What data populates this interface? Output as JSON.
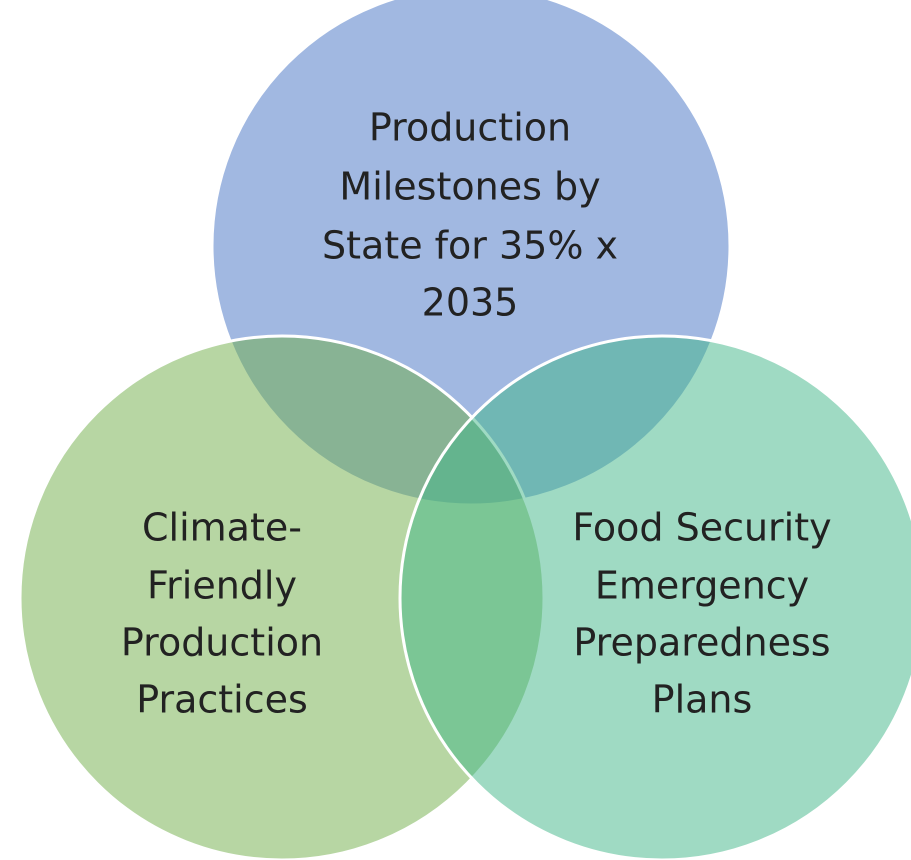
{
  "nodes": [
    {
      "lines": [
        "Production",
        "Milestones by",
        "State for 35% x",
        "2035"
      ]
    },
    {
      "lines": [
        "Climate-",
        "Friendly",
        "Production",
        "Practices"
      ]
    },
    {
      "lines": [
        "Food Security",
        "Emergency",
        "Preparedness",
        "Plans"
      ]
    }
  ]
}
